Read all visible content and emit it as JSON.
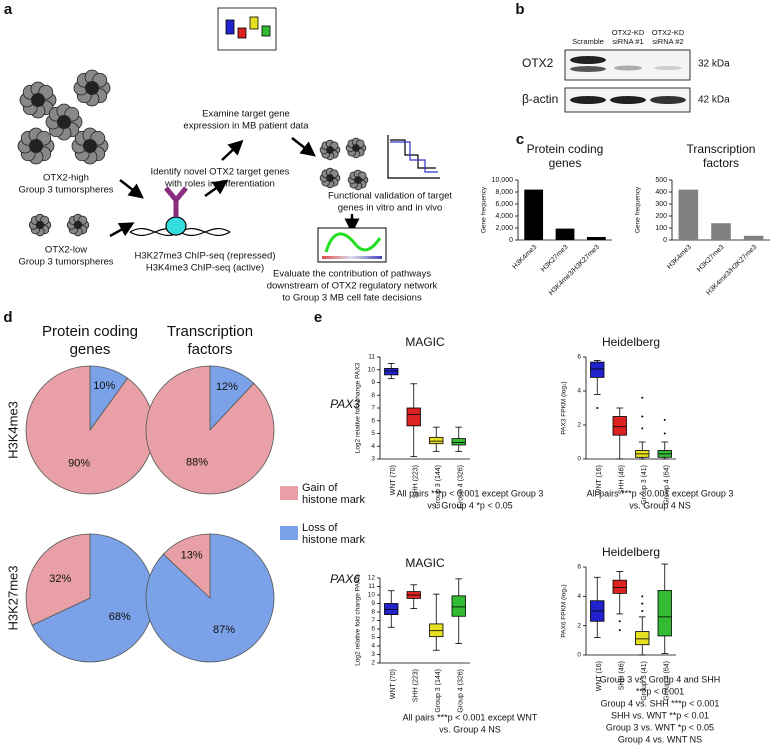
{
  "panel_a": {
    "label": "a",
    "otx2_high": [
      "OTX2-high",
      "Group 3 tumorspheres"
    ],
    "otx2_low": [
      "OTX2-low",
      "Group 3 tumorspheres"
    ],
    "chip": [
      "H3K27me3 ChIP-seq (repressed)",
      "H3K4me3 ChIP-seq (active)"
    ],
    "identify": [
      "Identify novel OTX2 target genes",
      "with roles in differentiation"
    ],
    "examine": [
      "Examine target gene",
      "expression in MB patient data"
    ],
    "validate": [
      "Functional validation of target",
      "genes in vitro and in vivo"
    ],
    "evaluate": [
      "Evaluate the contribution of pathways",
      "downstream of OTX2 regulatory network",
      "to Group 3 MB cell fate decisions"
    ]
  },
  "panel_b": {
    "label": "b",
    "lanes": [
      [
        "Scramble"
      ],
      [
        "OTX2-KD",
        "siRNA #1"
      ],
      [
        "OTX2-KD",
        "siRNA #2"
      ]
    ],
    "bands": [
      {
        "name": "OTX2",
        "size": "32 kDa"
      },
      {
        "name": "β-actin",
        "size": "42 kDa"
      }
    ]
  },
  "panel_c": {
    "label": "c"
  },
  "panel_d": {
    "label": "d",
    "columns": [
      [
        "Protein coding",
        "genes"
      ],
      [
        "Transcription",
        "factors"
      ]
    ],
    "rows": [
      "H3K4me3",
      "H3K27me3"
    ],
    "legend": [
      {
        "label": [
          "Gain of",
          "histone mark"
        ],
        "color": "#e8a0a6"
      },
      {
        "label": [
          "Loss of",
          "histone mark"
        ],
        "color": "#7ba2e8"
      }
    ]
  },
  "panel_e": {
    "label": "e",
    "genes": [
      "PAX3",
      "PAX6"
    ],
    "captions": [
      [
        "All pairs ***p < 0.001 except Group 3",
        "vs. Group 4 *p < 0.05"
      ],
      [
        "All pairs ***p < 0.001 except Group 3",
        "vs. Group 4 NS"
      ],
      [
        "All pairs ***p < 0.001 except WNT",
        "vs. Group 4 NS"
      ],
      [
        "Group 3 vs. Group 4 and SHH",
        "***p < 0.001",
        "Group 4 vs. SHH ***p < 0.001",
        "SHH vs. WNT **p < 0.01",
        "Group 3 vs. WNT *p < 0.05",
        "Group 4 vs. WNT NS"
      ]
    ]
  },
  "chart_data": [
    {
      "type": "bar",
      "title": [
        "Protein coding",
        "genes"
      ],
      "ylabel": "Gene frequency",
      "color": "#000000",
      "categories": [
        "H3K4me3",
        "H3K27me3",
        "H3K4me3/H3K27me3"
      ],
      "values": [
        8400,
        1900,
        500
      ],
      "ylim": [
        0,
        10000
      ],
      "yticks": [
        0,
        {
          "value": 2000,
          "label": "2,000"
        },
        {
          "value": 4000,
          "label": "4,000"
        },
        {
          "value": 6000,
          "label": "6,000"
        },
        {
          "value": 8000,
          "label": "8,000"
        },
        {
          "value": 10000,
          "label": "10,000"
        }
      ]
    },
    {
      "type": "bar",
      "title": [
        "Transcription",
        "factors"
      ],
      "ylabel": "Gene frequency",
      "color": "#808080",
      "categories": [
        "H3K4me3",
        "H3K27me3",
        "H3K4me3/H3K27me3"
      ],
      "values": [
        420,
        140,
        35
      ],
      "ylim": [
        0,
        500
      ],
      "yticks": [
        0,
        100,
        200,
        300,
        400,
        500
      ]
    },
    {
      "type": "pie",
      "values": [
        10,
        90
      ],
      "value_labels": [
        "10%",
        "90%"
      ],
      "colors": [
        "#7ba2e8",
        "#e8a0a6"
      ]
    },
    {
      "type": "pie",
      "values": [
        12,
        88
      ],
      "value_labels": [
        "12%",
        "88%"
      ],
      "colors": [
        "#7ba2e8",
        "#e8a0a6"
      ]
    },
    {
      "type": "pie",
      "values": [
        68,
        32
      ],
      "value_labels": [
        "68%",
        "32%"
      ],
      "colors": [
        "#7ba2e8",
        "#e8a0a6"
      ]
    },
    {
      "type": "pie",
      "values": [
        87,
        13
      ],
      "value_labels": [
        "87%",
        "13%"
      ],
      "colors": [
        "#7ba2e8",
        "#e8a0a6"
      ]
    },
    {
      "type": "box",
      "title": "MAGIC",
      "ylabel": "Log2 relative fold change PAX3",
      "categories": [
        "WNT (70)",
        "SHH (223)",
        "Group 3 (144)",
        "Group 4 (326)"
      ],
      "colors": [
        "#2222cc",
        "#dd2222",
        "#e6e022",
        "#33bb33"
      ],
      "boxes": [
        {
          "whislo": 9.3,
          "q1": 9.6,
          "med": 9.9,
          "q3": 10.1,
          "whishi": 10.5,
          "fliers": []
        },
        {
          "whislo": 3.2,
          "q1": 5.6,
          "med": 6.5,
          "q3": 7.0,
          "whishi": 8.9,
          "fliers": []
        },
        {
          "whislo": 3.6,
          "q1": 4.2,
          "med": 4.4,
          "q3": 4.7,
          "whishi": 5.5,
          "fliers": []
        },
        {
          "whislo": 3.6,
          "q1": 4.1,
          "med": 4.3,
          "q3": 4.6,
          "whishi": 5.5,
          "fliers": []
        }
      ],
      "ylim": [
        3,
        11
      ],
      "yticks": [
        3,
        4,
        5,
        6,
        7,
        8,
        9,
        10,
        11
      ]
    },
    {
      "type": "box",
      "title": "Heidelberg",
      "ylabel": "PAX3 FPKM (log₂)",
      "categories": [
        "WNT (16)",
        "SHH (46)",
        "Group 3 (41)",
        "Group 4 (64)"
      ],
      "colors": [
        "#2222cc",
        "#dd2222",
        "#e6e022",
        "#33bb33"
      ],
      "boxes": [
        {
          "whislo": 3.8,
          "q1": 4.8,
          "med": 5.3,
          "q3": 5.7,
          "whishi": 5.8,
          "fliers": [
            3.0
          ]
        },
        {
          "whislo": 0,
          "q1": 1.4,
          "med": 1.9,
          "q3": 2.5,
          "whishi": 3.0,
          "fliers": []
        },
        {
          "whislo": 0,
          "q1": 0.1,
          "med": 0.3,
          "q3": 0.5,
          "whishi": 1.0,
          "fliers": [
            3.6,
            2.5,
            1.8
          ]
        },
        {
          "whislo": 0,
          "q1": 0.1,
          "med": 0.3,
          "q3": 0.5,
          "whishi": 1.0,
          "fliers": [
            2.3,
            1.5
          ]
        }
      ],
      "ylim": [
        0,
        6
      ],
      "yticks": [
        0,
        2,
        4,
        6
      ]
    },
    {
      "type": "box",
      "title": "MAGIC",
      "ylabel": "Log2 relative fold change PAX6",
      "categories": [
        "WNT (70)",
        "SHH (223)",
        "Group 3 (144)",
        "Group 4 (326)"
      ],
      "colors": [
        "#2222cc",
        "#dd2222",
        "#e6e022",
        "#33bb33"
      ],
      "boxes": [
        {
          "whislo": 6.2,
          "q1": 7.7,
          "med": 8.3,
          "q3": 9.0,
          "whishi": 10.5,
          "fliers": []
        },
        {
          "whislo": 8.4,
          "q1": 9.6,
          "med": 10.0,
          "q3": 10.4,
          "whishi": 11.2,
          "fliers": []
        },
        {
          "whislo": 3.5,
          "q1": 5.1,
          "med": 5.8,
          "q3": 6.6,
          "whishi": 10.1,
          "fliers": []
        },
        {
          "whislo": 4.3,
          "q1": 7.5,
          "med": 8.6,
          "q3": 9.9,
          "whishi": 11.9,
          "fliers": []
        }
      ],
      "ylim": [
        2,
        12
      ],
      "yticks": [
        2,
        3,
        4,
        5,
        6,
        7,
        8,
        9,
        10,
        11,
        12
      ]
    },
    {
      "type": "box",
      "title": "Heidelberg",
      "ylabel": "PAX6 FPKM (log₂)",
      "categories": [
        "WNT (16)",
        "SHH (46)",
        "Group 3 (41)",
        "Group 4 (64)"
      ],
      "colors": [
        "#2222cc",
        "#dd2222",
        "#e6e022",
        "#33bb33"
      ],
      "boxes": [
        {
          "whislo": 1.2,
          "q1": 2.3,
          "med": 3.0,
          "q3": 3.7,
          "whishi": 5.3,
          "fliers": []
        },
        {
          "whislo": 2.8,
          "q1": 4.2,
          "med": 4.6,
          "q3": 5.1,
          "whishi": 5.7,
          "fliers": [
            1.7,
            2.3
          ]
        },
        {
          "whislo": 0,
          "q1": 0.7,
          "med": 1.1,
          "q3": 1.6,
          "whishi": 2.6,
          "fliers": [
            4.0,
            3.5,
            3.0
          ]
        },
        {
          "whislo": 0.1,
          "q1": 1.3,
          "med": 2.6,
          "q3": 4.4,
          "whishi": 6.2,
          "fliers": []
        }
      ],
      "ylim": [
        0,
        6
      ],
      "yticks": [
        0,
        2,
        4,
        6
      ]
    }
  ]
}
